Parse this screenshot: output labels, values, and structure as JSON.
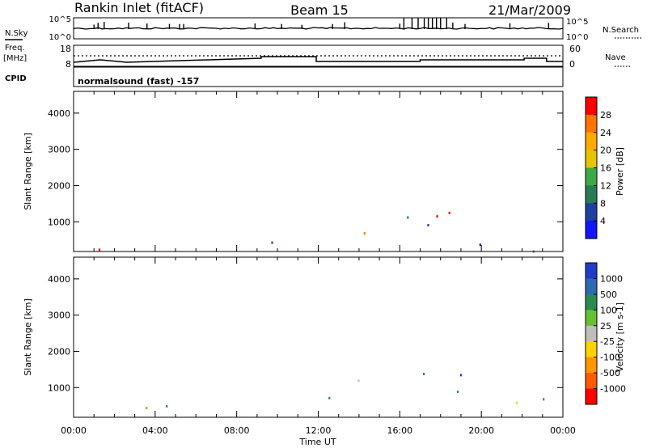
{
  "header": {
    "station": "Rankin Inlet (fitACF)",
    "beam": "Beam 15",
    "date": "21/Mar/2009"
  },
  "strip1": {
    "left_label": "N.Sky",
    "right_label": "N.Search",
    "ticks": [
      "10^5",
      "10^0"
    ]
  },
  "strip2": {
    "left_label_1": "Freq.",
    "left_label_2": "[MHz]",
    "left_ticks": [
      "18",
      "8"
    ],
    "right_ticks": [
      "60",
      "0"
    ],
    "right_label": "Nave",
    "cpid_label": "CPID",
    "cpid_text": "normalsound (fast) -157"
  },
  "chart_data": {
    "type": "heatmap",
    "x_ticks": [
      "00:00",
      "04:00",
      "08:00",
      "12:00",
      "16:00",
      "20:00",
      "00:00"
    ],
    "xlabel": "Time UT",
    "ylabel": "Slant Range [km]",
    "y_ticks": [
      "1000",
      "2000",
      "3000",
      "4000"
    ],
    "xlim_hours": [
      0,
      24
    ],
    "ylim_km": [
      180,
      4600
    ],
    "panels": [
      {
        "name": "power",
        "colorbar_label": "Power [dB]",
        "colorbar_ticks": [
          "28",
          "24",
          "20",
          "16",
          "12",
          "8",
          "4"
        ],
        "colorbar_colors": [
          "#ff0000",
          "#ff7300",
          "#ffaa00",
          "#e6c400",
          "#3caa46",
          "#2a7a55",
          "#1e40a0",
          "#1414ff"
        ]
      },
      {
        "name": "velocity",
        "colorbar_label": "Velocity [m s-1]",
        "colorbar_ticks": [
          "1000",
          "500",
          "100",
          "25",
          "-25",
          "-100",
          "-500",
          "-1000"
        ],
        "colorbar_colors": [
          "#1e3cc8",
          "#2c6ab4",
          "#2a8a50",
          "#66c032",
          "#bebebe",
          "#ffd200",
          "#ff9600",
          "#ff5a00",
          "#ff0000"
        ]
      }
    ]
  }
}
